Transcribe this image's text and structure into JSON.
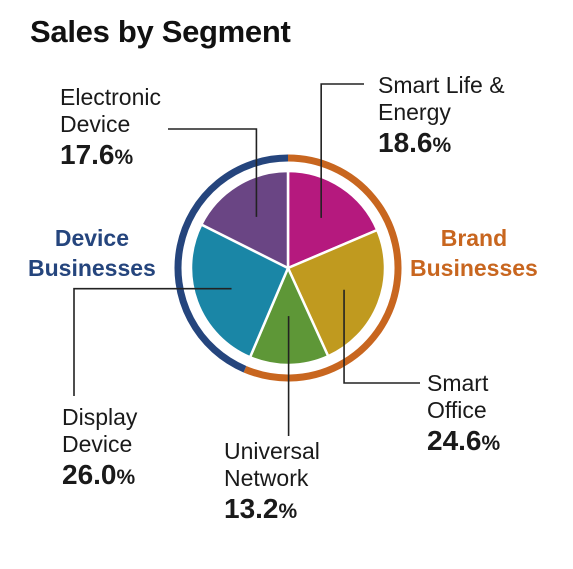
{
  "title": "Sales by Segment",
  "groups": {
    "device": {
      "line1": "Device",
      "line2": "Businesses",
      "color": "#25457d"
    },
    "brand": {
      "line1": "Brand",
      "line2": "Businesses",
      "color": "#c8661f"
    }
  },
  "chart_data": {
    "type": "pie",
    "title": "Sales by Segment",
    "unit": "%",
    "slices": [
      {
        "label": "Smart Life & Energy",
        "value": 18.6,
        "color": "#b5197e",
        "group": "Brand Businesses"
      },
      {
        "label": "Smart Office",
        "value": 24.6,
        "color": "#c09a1f",
        "group": "Brand Businesses"
      },
      {
        "label": "Universal Network",
        "value": 13.2,
        "color": "#5e9737",
        "group": "Brand Businesses"
      },
      {
        "label": "Display Device",
        "value": 26.0,
        "color": "#1a86a6",
        "group": "Device Businesses"
      },
      {
        "label": "Electronic Device",
        "value": 17.6,
        "color": "#6a4584",
        "group": "Device Businesses"
      }
    ]
  },
  "labels": {
    "sle": {
      "line1": "Smart Life &",
      "line2": "Energy",
      "pct": "18.6",
      "sym": "%"
    },
    "so": {
      "line1": "Smart",
      "line2": "Office",
      "pct": "24.6",
      "sym": "%"
    },
    "un": {
      "line1": "Universal",
      "line2": "Network",
      "pct": "13.2",
      "sym": "%"
    },
    "dd": {
      "line1": "Display",
      "line2": "Device",
      "pct": "26.0",
      "sym": "%"
    },
    "ed": {
      "line1": "Electronic",
      "line2": "Device",
      "pct": "17.6",
      "sym": "%"
    }
  }
}
